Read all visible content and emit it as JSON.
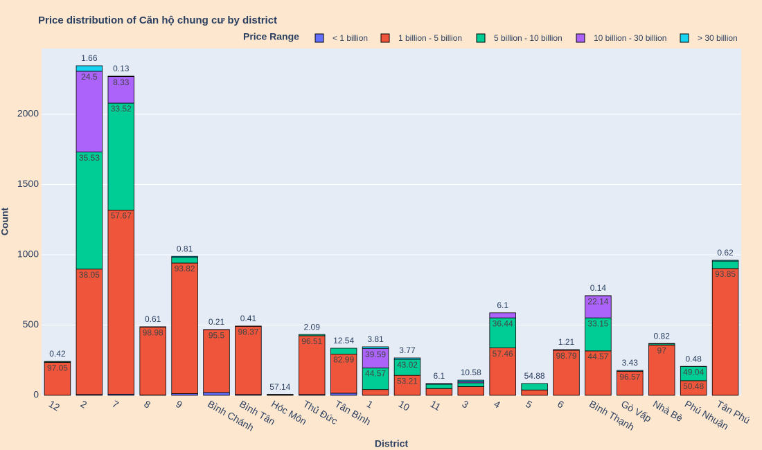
{
  "chart_data": {
    "type": "stacked_bar",
    "title": "Price distribution of Căn hộ chung cư by district",
    "x_label": "District",
    "y_label": "Count",
    "legend_title": "Price Range",
    "categories": [
      "12",
      "2",
      "7",
      "8",
      "9",
      "Bình Chánh",
      "Bình Tân",
      "Hóc Môn",
      "Thủ Đức",
      "Tân Bình",
      "1",
      "10",
      "11",
      "3",
      "4",
      "5",
      "6",
      "Bình Thạnh",
      "Gò Vấp",
      "Nhà Bè",
      "Phú Nhuận",
      "Tân Phú"
    ],
    "series": [
      {
        "name": "< 1 billion",
        "color": "#636efa",
        "values": [
          0,
          6,
          8,
          2,
          12,
          20,
          6,
          3,
          6,
          15,
          0,
          0,
          0,
          0,
          0,
          0,
          0,
          0,
          0,
          0,
          0,
          0
        ],
        "text": [
          null,
          null,
          null,
          null,
          null,
          null,
          null,
          null,
          null,
          null,
          null,
          null,
          null,
          null,
          null,
          null,
          null,
          null,
          null,
          null,
          null,
          null
        ]
      },
      {
        "name": "1 billion - 5 billion",
        "color": "#ef553b",
        "values": [
          234,
          892,
          1310,
          483,
          929,
          447,
          485,
          4,
          418,
          278,
          41,
          142,
          48,
          62,
          337,
          38,
          321,
          316,
          171,
          358,
          104,
          902
        ],
        "text": [
          "97.05",
          "38.05",
          "57.67",
          "98.98",
          "93.82",
          "95.5",
          "98.37",
          "57.14",
          "96.51",
          "82.99",
          null,
          "53.21",
          null,
          null,
          "57.46",
          null,
          "98.79",
          "44.57",
          "96.57",
          "97",
          "50.48",
          "93.85"
        ]
      },
      {
        "name": "5 billion - 10 billion",
        "color": "#00cc96",
        "values": [
          6,
          833,
          761,
          0,
          40,
          0,
          0,
          0,
          9,
          42,
          154,
          114,
          31,
          27,
          214,
          46,
          0,
          235,
          0,
          8,
          101,
          53
        ],
        "text": [
          null,
          "35.53",
          "33.52",
          null,
          null,
          null,
          null,
          null,
          "2.09",
          "12.54",
          "44.57",
          "43.02",
          null,
          null,
          "36.44",
          "54.88",
          null,
          "33.15",
          null,
          null,
          "49.04",
          null
        ]
      },
      {
        "name": "10 billion - 30 billion",
        "color": "#ab63fa",
        "values": [
          0,
          575,
          189,
          0,
          0,
          0,
          0,
          0,
          0,
          0,
          137,
          0,
          5,
          8,
          36,
          0,
          0,
          157,
          0,
          0,
          0,
          0
        ],
        "text": [
          null,
          "24.5",
          "8.33",
          null,
          null,
          null,
          null,
          null,
          null,
          null,
          "39.59",
          null,
          "6.1",
          null,
          "6.1",
          null,
          null,
          "22.14",
          null,
          null,
          null,
          null
        ]
      },
      {
        "name": "> 30 billion",
        "color": "#19d3f3",
        "values": [
          1,
          39,
          3,
          3,
          8,
          1,
          2,
          0,
          0,
          0,
          13,
          10,
          0,
          11,
          0,
          0,
          4,
          1,
          6,
          3,
          1,
          6
        ],
        "text": [
          "0.42",
          "1.66",
          "0.13",
          "0.61",
          "0.81",
          "0.21",
          "0.41",
          null,
          null,
          null,
          "3.81",
          "3.77",
          null,
          "10.58",
          null,
          null,
          "1.21",
          "0.14",
          "3.43",
          "0.82",
          "0.48",
          "0.62"
        ]
      }
    ],
    "ylim": [
      0,
      2468
    ],
    "yticks": [
      0,
      500,
      1000,
      1500,
      2000
    ],
    "grid": true
  }
}
